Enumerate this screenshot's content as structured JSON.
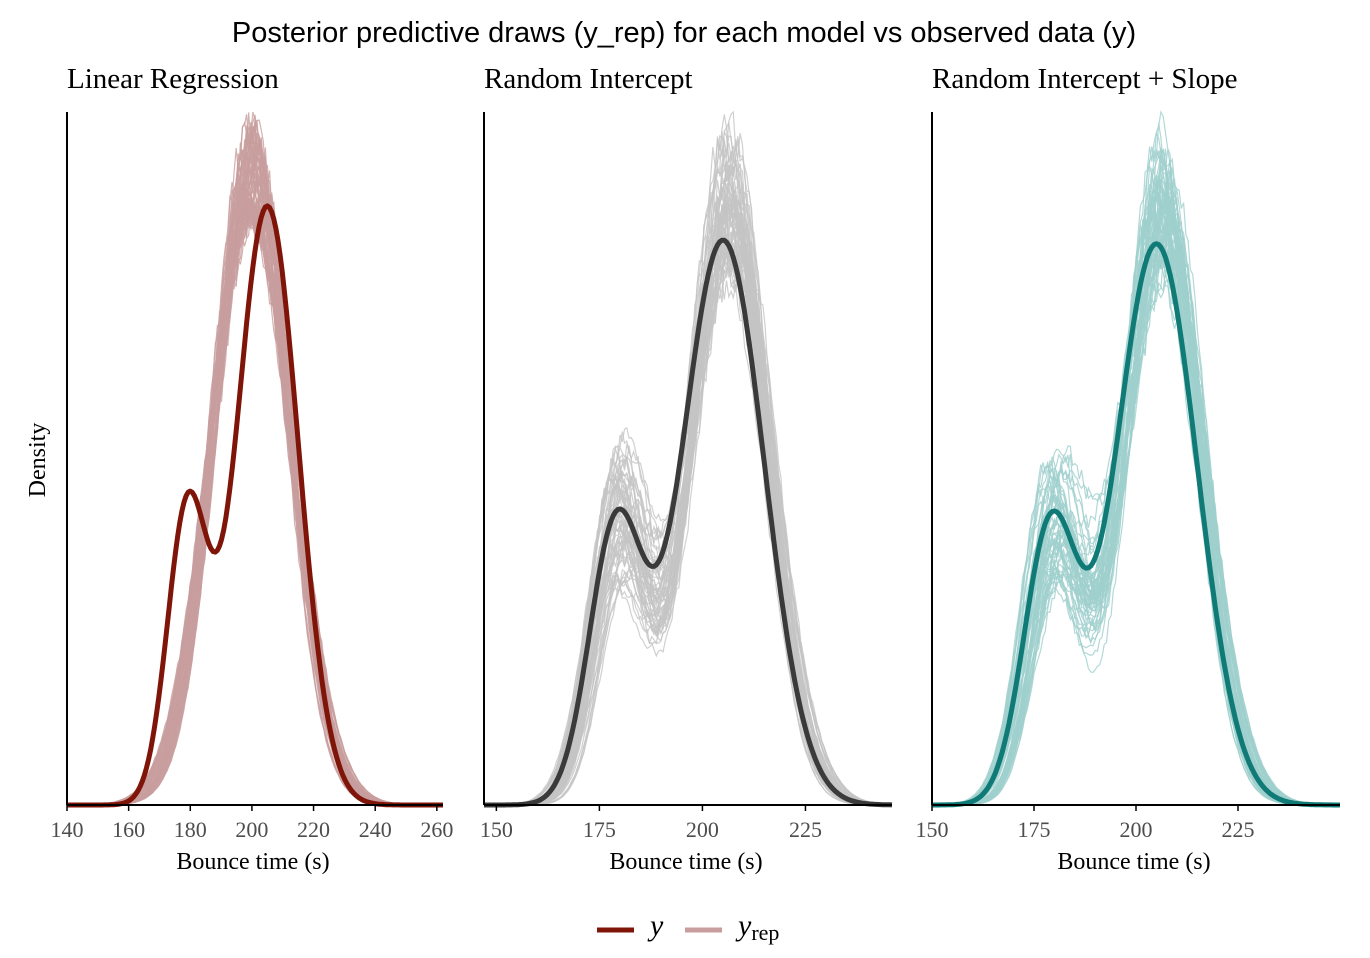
{
  "chart_data": {
    "type": "density",
    "title": "Posterior predictive draws (y_rep) for each model vs observed data (y)",
    "ylabel": "Density",
    "legend": {
      "position": "bottom",
      "entries": [
        {
          "key": "y",
          "label": "y",
          "sub": "",
          "color": "#7f1408"
        },
        {
          "key": "y_rep",
          "label": "y",
          "sub": "rep",
          "color": "#c89d9d"
        }
      ]
    },
    "observed_y": {
      "components": [
        {
          "weight": 0.24,
          "mean": 179,
          "sd": 6.5
        },
        {
          "weight": 0.76,
          "mean": 205,
          "sd": 10
        }
      ]
    },
    "panels": [
      {
        "title": "Linear Regression",
        "xlabel": "Bounce time (s)",
        "xlim": [
          140,
          262
        ],
        "xticks": [
          140,
          160,
          180,
          200,
          220,
          240,
          260
        ],
        "y_color": "#7f1408",
        "yrep_color": "#c89d9d",
        "yrep_model": {
          "weight2": 0.0,
          "mean2": 200,
          "sd": 12.5
        },
        "n_draws": 60
      },
      {
        "title": "Random Intercept",
        "xlabel": "Bounce time (s)",
        "xlim": [
          147,
          246
        ],
        "xticks": [
          150,
          175,
          200,
          225
        ],
        "y_color": "#3a3a3a",
        "yrep_color": "#c4c4c4",
        "yrep_model": {
          "weight2": 0.24,
          "mean2": 206.5,
          "sd": 9.5
        },
        "n_draws": 60
      },
      {
        "title": "Random Intercept + Slope",
        "xlabel": "Bounce time (s)",
        "xlim": [
          150,
          250
        ],
        "xticks": [
          150,
          175,
          200,
          225
        ],
        "y_color": "#0f7a76",
        "yrep_color": "#9fd0cd",
        "yrep_model": {
          "weight2": 0.24,
          "mean2": 206.5,
          "sd": 9.5
        },
        "n_draws": 60
      }
    ]
  }
}
